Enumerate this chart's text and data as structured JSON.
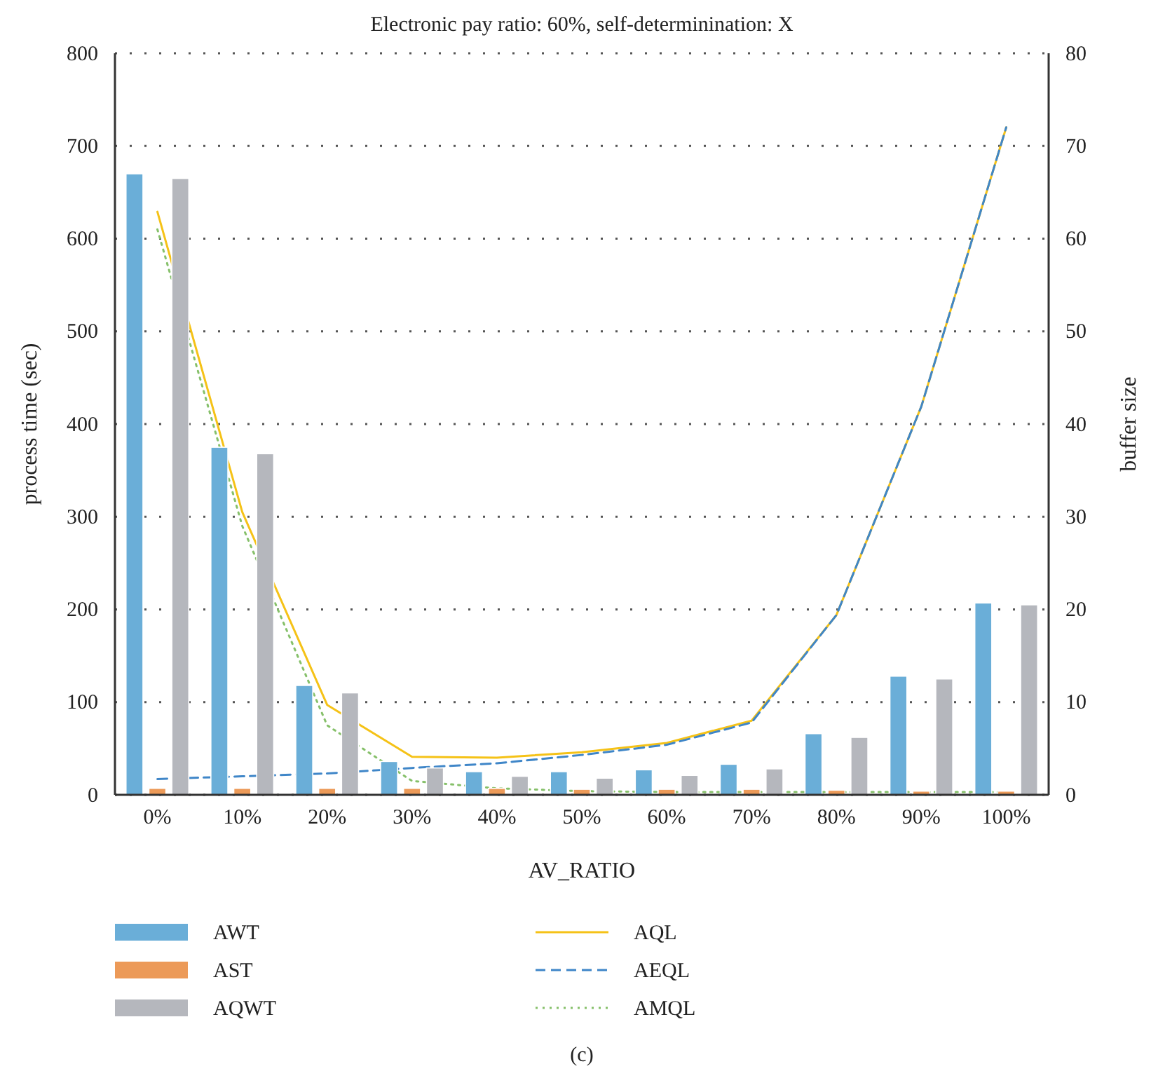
{
  "chart_data": {
    "type": "bar",
    "title": "Electronic pay ratio: 60%, self-determinination: X",
    "xlabel": "AV_RATIO",
    "ylabel": "process time (sec)",
    "y2label": "buffer size",
    "categories": [
      "0%",
      "10%",
      "20%",
      "30%",
      "40%",
      "50%",
      "60%",
      "70%",
      "80%",
      "90%",
      "100%"
    ],
    "series": [
      {
        "name": "AWT",
        "color": "#6aaed8",
        "values": [
          670,
          375,
          118,
          36,
          25,
          25,
          27,
          33,
          66,
          128,
          207
        ]
      },
      {
        "name": "AST",
        "color": "#ec9a58",
        "values": [
          7,
          7,
          7,
          7,
          7,
          6,
          6,
          6,
          5,
          4,
          4
        ]
      },
      {
        "name": "AQWT",
        "color": "#b5b7bd",
        "values": [
          665,
          368,
          110,
          29,
          20,
          18,
          21,
          28,
          62,
          125,
          205
        ]
      },
      {
        "name": "AQL",
        "type": "line",
        "axis": "y2",
        "color": "#f5c217",
        "line_style": "solid",
        "values": [
          62.9,
          30.5,
          9.7,
          4.1,
          4.0,
          4.6,
          5.6,
          8.0,
          19.4,
          41.9,
          72
        ]
      },
      {
        "name": "AEQL",
        "type": "line",
        "axis": "y2",
        "color": "#3f86c8",
        "line_style": "dashed",
        "values": [
          1.7,
          2.0,
          2.3,
          2.9,
          3.4,
          4.3,
          5.4,
          7.8,
          19.4,
          41.9,
          72
        ]
      },
      {
        "name": "AMQL",
        "type": "line",
        "axis": "y2",
        "color": "#86c06a",
        "line_style": "dotted",
        "values": [
          61,
          29,
          7.5,
          1.5,
          0.7,
          0.4,
          0.3,
          0.3,
          0.3,
          0.3,
          0.3
        ]
      }
    ],
    "ylim": [
      0,
      800
    ],
    "yticks": [
      0,
      100,
      200,
      300,
      400,
      500,
      600,
      700,
      800
    ],
    "y2lim": [
      0,
      80
    ],
    "y2ticks": [
      0,
      10,
      20,
      30,
      40,
      50,
      60,
      70,
      80
    ],
    "grid": "y",
    "legend": "bottom",
    "annotations": [
      "(c)"
    ]
  }
}
